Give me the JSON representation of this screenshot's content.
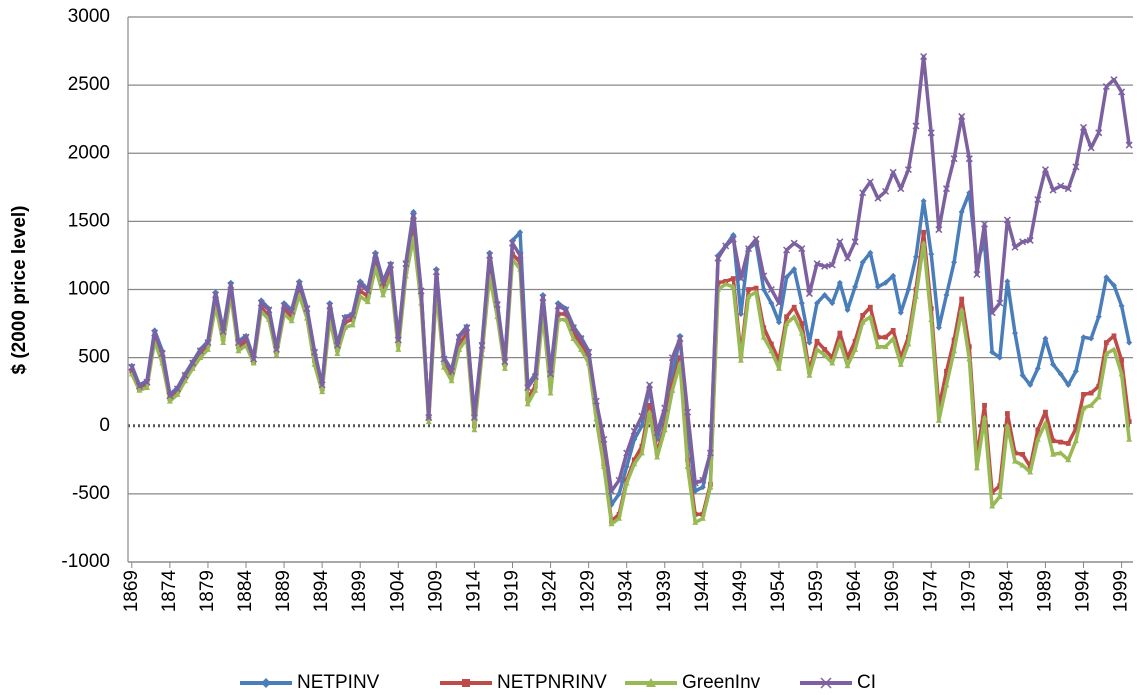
{
  "chart_data": {
    "type": "line",
    "ylabel": "$ (2000 price level)",
    "categories": [
      "1869",
      null,
      null,
      null,
      null,
      "1874",
      null,
      null,
      null,
      null,
      "1879",
      null,
      null,
      null,
      null,
      "1884",
      null,
      null,
      null,
      null,
      "1889",
      null,
      null,
      null,
      null,
      "1894",
      null,
      null,
      null,
      null,
      "1899",
      null,
      null,
      null,
      null,
      "1904",
      null,
      null,
      null,
      null,
      "1909",
      null,
      null,
      null,
      null,
      "1914",
      null,
      null,
      null,
      null,
      "1919",
      null,
      null,
      null,
      null,
      "1924",
      null,
      null,
      null,
      null,
      "1929",
      null,
      null,
      null,
      null,
      "1934",
      null,
      null,
      null,
      null,
      "1939",
      null,
      null,
      null,
      null,
      "1944",
      null,
      null,
      null,
      null,
      "1949",
      null,
      null,
      null,
      null,
      "1954",
      null,
      null,
      null,
      null,
      "1959",
      null,
      null,
      null,
      null,
      "1964",
      null,
      null,
      null,
      null,
      "1969",
      null,
      null,
      null,
      null,
      "1974",
      null,
      null,
      null,
      null,
      "1979",
      null,
      null,
      null,
      null,
      "1984",
      null,
      null,
      null,
      null,
      "1989",
      null,
      null,
      null,
      null,
      "1994",
      null,
      null,
      null,
      null,
      "1999",
      null
    ],
    "series": [
      {
        "name": "NETPINV",
        "color": "#4a7ebb",
        "marker": "diamond",
        "values": [
          440,
          300,
          330,
          700,
          550,
          230,
          280,
          380,
          470,
          560,
          620,
          980,
          700,
          1050,
          620,
          660,
          500,
          920,
          860,
          570,
          900,
          850,
          1060,
          870,
          550,
          300,
          900,
          600,
          800,
          820,
          1060,
          1000,
          1270,
          1060,
          1190,
          640,
          1200,
          1570,
          1000,
          60,
          1150,
          500,
          410,
          660,
          730,
          80,
          600,
          1270,
          900,
          480,
          1360,
          1420,
          300,
          380,
          960,
          400,
          900,
          860,
          730,
          650,
          550,
          150,
          -200,
          -580,
          -500,
          -300,
          -100,
          0,
          280,
          -100,
          100,
          350,
          660,
          0,
          -480,
          -450,
          -200,
          1250,
          1320,
          1400,
          820,
          1300,
          1340,
          1000,
          900,
          760,
          1090,
          1150,
          900,
          610,
          900,
          960,
          900,
          1050,
          850,
          1020,
          1200,
          1270,
          1020,
          1050,
          1100,
          830,
          1000,
          1240,
          1650,
          1260,
          720,
          960,
          1200,
          1570,
          1710,
          1200,
          1350,
          540,
          500,
          1060,
          680,
          370,
          300,
          420,
          640,
          450,
          380,
          300,
          400,
          650,
          640,
          800,
          1090,
          1030,
          880,
          610
        ]
      },
      {
        "name": "NETPNRINV",
        "color": "#be4b48",
        "marker": "square",
        "values": [
          400,
          270,
          310,
          640,
          480,
          200,
          250,
          360,
          440,
          530,
          590,
          920,
          640,
          990,
          580,
          620,
          470,
          870,
          800,
          540,
          860,
          800,
          1000,
          820,
          480,
          270,
          820,
          560,
          760,
          780,
          990,
          950,
          1200,
          1000,
          1130,
          600,
          1130,
          1420,
          960,
          60,
          1020,
          460,
          370,
          600,
          680,
          0,
          560,
          1150,
          860,
          450,
          1260,
          1200,
          200,
          290,
          850,
          300,
          820,
          820,
          680,
          600,
          500,
          100,
          -280,
          -700,
          -650,
          -400,
          -250,
          -150,
          150,
          -200,
          0,
          300,
          500,
          -250,
          -650,
          -650,
          -430,
          1050,
          1060,
          1080,
          520,
          1000,
          1010,
          720,
          600,
          480,
          800,
          870,
          750,
          400,
          620,
          560,
          500,
          680,
          500,
          620,
          810,
          870,
          650,
          650,
          700,
          500,
          650,
          1000,
          1420,
          860,
          130,
          400,
          630,
          930,
          580,
          -240,
          150,
          -490,
          -440,
          90,
          -200,
          -210,
          -300,
          -30,
          100,
          -110,
          -120,
          -130,
          -20,
          230,
          240,
          290,
          610,
          660,
          480,
          30
        ]
      },
      {
        "name": "GreenInv",
        "color": "#98b954",
        "marker": "triangle",
        "values": [
          380,
          260,
          280,
          620,
          460,
          180,
          230,
          330,
          420,
          500,
          560,
          880,
          610,
          960,
          550,
          590,
          460,
          840,
          780,
          520,
          820,
          770,
          960,
          790,
          450,
          250,
          780,
          530,
          720,
          740,
          950,
          910,
          1160,
          960,
          1100,
          560,
          1100,
          1380,
          900,
          30,
          990,
          430,
          330,
          560,
          640,
          -30,
          520,
          1100,
          800,
          420,
          1220,
          1150,
          160,
          260,
          820,
          240,
          780,
          780,
          640,
          560,
          460,
          50,
          -300,
          -720,
          -680,
          -420,
          -280,
          -200,
          100,
          -230,
          -30,
          260,
          460,
          -300,
          -710,
          -680,
          -450,
          1000,
          1040,
          1020,
          480,
          950,
          980,
          650,
          550,
          420,
          750,
          800,
          680,
          370,
          560,
          520,
          460,
          620,
          440,
          560,
          760,
          800,
          580,
          580,
          640,
          450,
          600,
          950,
          1340,
          780,
          40,
          300,
          550,
          850,
          490,
          -310,
          60,
          -590,
          -520,
          0,
          -260,
          -290,
          -340,
          -100,
          20,
          -210,
          -200,
          -250,
          -110,
          130,
          150,
          210,
          530,
          560,
          380,
          -100
        ]
      },
      {
        "name": "CI",
        "color": "#7d60a0",
        "marker": "x",
        "values": [
          430,
          290,
          320,
          680,
          530,
          220,
          270,
          370,
          460,
          550,
          610,
          960,
          690,
          1030,
          610,
          650,
          490,
          900,
          850,
          560,
          880,
          840,
          1040,
          860,
          540,
          300,
          880,
          590,
          790,
          810,
          1040,
          990,
          1250,
          1050,
          1180,
          630,
          1190,
          1540,
          990,
          60,
          1130,
          490,
          400,
          650,
          720,
          60,
          590,
          1250,
          890,
          470,
          1340,
          1250,
          280,
          360,
          940,
          380,
          880,
          850,
          720,
          640,
          540,
          180,
          -100,
          -480,
          -400,
          -200,
          -40,
          70,
          300,
          -50,
          130,
          500,
          640,
          100,
          -420,
          -400,
          -200,
          1230,
          1320,
          1370,
          1080,
          1300,
          1370,
          1100,
          1000,
          900,
          1290,
          1340,
          1300,
          970,
          1190,
          1170,
          1180,
          1350,
          1230,
          1350,
          1710,
          1790,
          1670,
          1720,
          1860,
          1740,
          1880,
          2200,
          2710,
          2150,
          1440,
          1740,
          1960,
          2270,
          1960,
          1110,
          1480,
          830,
          900,
          1510,
          1310,
          1350,
          1360,
          1660,
          1880,
          1730,
          1760,
          1740,
          1900,
          2190,
          2040,
          2150,
          2490,
          2540,
          2450,
          2060
        ]
      }
    ],
    "ylim": [
      -1000,
      3000
    ],
    "yticks": [
      -1000,
      -500,
      0,
      500,
      1000,
      1500,
      2000,
      2500,
      3000
    ],
    "grid": true,
    "legend": "bottom"
  }
}
